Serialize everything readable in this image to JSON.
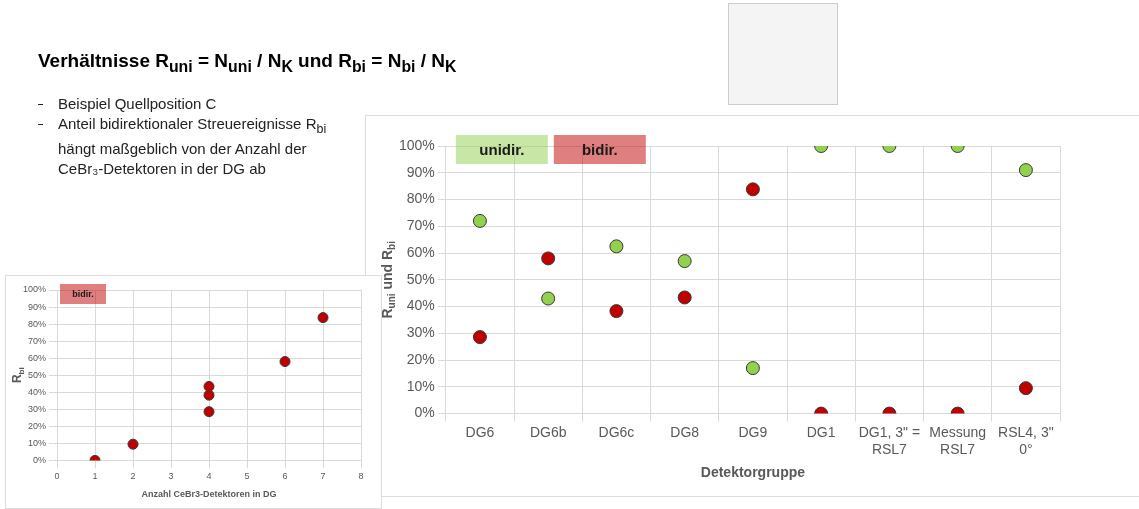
{
  "chart_data": [
    {
      "type": "other",
      "title": "Verhältnisse R$_{uni}$ = N$_{uni}$ / N$_{K}$ und R$_{bi}$ = N$_{bi}$ / N$_{K}$",
      "annotations": [
        "Beispiel Quellposition C",
        "Anteil bidirektionaler Streuereignisse R$_{bi}$ hängt maßgeblich von der Anzahl der CeBr₃-Detektoren in der DG ab"
      ]
    },
    {
      "type": "scatter",
      "xlabel": "Detektorgruppe",
      "ylabel": "R$_{uni}$ und R$_{bi}$",
      "categories": [
        "DG6",
        "DG6b",
        "DG6c",
        "DG8",
        "DG9",
        "DG1",
        "DG1, 3\" = RSL7",
        "Messung RSL7",
        "RSL4, 3\" 0°"
      ],
      "series": [
        {
          "name": "unidir.",
          "color": "#92d050",
          "values": [
            72,
            43,
            62.5,
            57,
            17,
            100,
            100,
            100,
            91
          ]
        },
        {
          "name": "bidir.",
          "color": "#c00000",
          "values": [
            28.6,
            58,
            38.3,
            43.4,
            83.8,
            0,
            0,
            0,
            9.5
          ]
        }
      ],
      "ylim": [
        0,
        100
      ],
      "yticks": [
        {
          "value": 0,
          "label": "0%"
        },
        {
          "value": 10,
          "label": "10%"
        },
        {
          "value": 20,
          "label": "20%"
        },
        {
          "value": 30,
          "label": "30%"
        },
        {
          "value": 40,
          "label": "40%"
        },
        {
          "value": 50,
          "label": "50%"
        },
        {
          "value": 60,
          "label": "60%"
        },
        {
          "value": 70,
          "label": "70%"
        },
        {
          "value": 80,
          "label": "80%"
        },
        {
          "value": 90,
          "label": "90%"
        },
        {
          "value": 100,
          "label": "100%"
        }
      ],
      "grid": true,
      "legend": "top left",
      "marker": "circle"
    },
    {
      "type": "scatter",
      "xlabel": "Anzahl CeBr3-Detektoren in DG",
      "ylabel": "R$_{bi}$",
      "series": [
        {
          "name": "bidir.",
          "color": "#c00000",
          "x": [
            1,
            2,
            4,
            4,
            4,
            6,
            7
          ],
          "values": [
            0,
            9.5,
            43.4,
            38.3,
            28.6,
            58,
            83.8
          ]
        }
      ],
      "xlim": [
        0,
        8
      ],
      "xticks": [
        0,
        1,
        2,
        3,
        4,
        5,
        6,
        7,
        8
      ],
      "ylim": [
        0,
        100
      ],
      "yticks": [
        {
          "value": 0,
          "label": "0%"
        },
        {
          "value": 10,
          "label": "10%"
        },
        {
          "value": 20,
          "label": "20%"
        },
        {
          "value": 30,
          "label": "30%"
        },
        {
          "value": 40,
          "label": "40%"
        },
        {
          "value": 50,
          "label": "50%"
        },
        {
          "value": 60,
          "label": "60%"
        },
        {
          "value": 70,
          "label": "70%"
        },
        {
          "value": 80,
          "label": "80%"
        },
        {
          "value": 90,
          "label": "90%"
        },
        {
          "value": 100,
          "label": "100%"
        }
      ],
      "grid": true,
      "legend": "top left",
      "marker": "circle"
    }
  ]
}
